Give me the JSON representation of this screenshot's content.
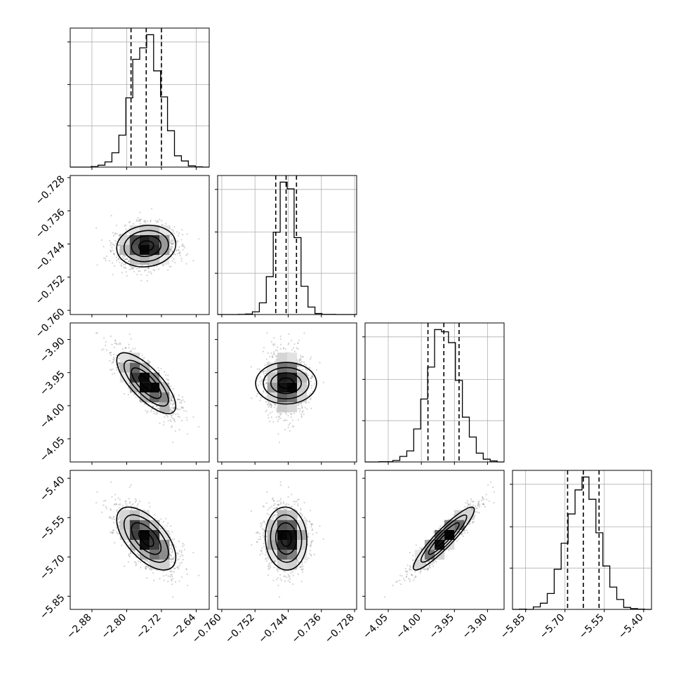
{
  "chart_data": {
    "type": "corner",
    "parameters": [
      {
        "mean": -2.755,
        "std": 0.034,
        "range": [
          -2.93,
          -2.61
        ],
        "ticks": [
          -2.88,
          -2.8,
          -2.72,
          -2.64
        ],
        "tick_labels": [
          "−2.88",
          "−2.80",
          "−2.72",
          "−2.64"
        ],
        "quantiles": [
          -2.79,
          -2.755,
          -2.72
        ]
      },
      {
        "mean": -0.7445,
        "std": 0.0025,
        "range": [
          -0.761,
          -0.7275
        ],
        "ticks": [
          -0.76,
          -0.752,
          -0.744,
          -0.736,
          -0.728
        ],
        "tick_labels": [
          "−0.760",
          "−0.752",
          "−0.744",
          "−0.736",
          "−0.728"
        ],
        "quantiles": [
          -0.747,
          -0.7445,
          -0.742
        ]
      },
      {
        "mean": -3.966,
        "std": 0.023,
        "range": [
          -4.085,
          -3.875
        ],
        "ticks": [
          -4.05,
          -4.0,
          -3.95,
          -3.9
        ],
        "tick_labels": [
          "−4.05",
          "−4.00",
          "−3.95",
          "−3.90"
        ],
        "quantiles": [
          -3.99,
          -3.966,
          -3.943
        ]
      },
      {
        "mean": -5.63,
        "std": 0.06,
        "range": [
          -5.9,
          -5.37
        ],
        "ticks": [
          -5.85,
          -5.7,
          -5.55,
          -5.4
        ],
        "tick_labels": [
          "−5.85",
          "−5.70",
          "−5.55",
          "−5.40"
        ],
        "quantiles": [
          -5.69,
          -5.63,
          -5.57
        ]
      }
    ],
    "correlations": [
      {
        "pair": [
          0,
          1
        ],
        "r": 0.1
      },
      {
        "pair": [
          0,
          2
        ],
        "r": -0.75
      },
      {
        "pair": [
          0,
          3
        ],
        "r": -0.6
      },
      {
        "pair": [
          1,
          2
        ],
        "r": 0.0
      },
      {
        "pair": [
          1,
          3
        ],
        "r": -0.05
      },
      {
        "pair": [
          2,
          3
        ],
        "r": 0.92
      }
    ],
    "histogram_bins": 20,
    "contour_levels_sigma": [
      0.5,
      1.0,
      1.5,
      2.0
    ],
    "grid": true,
    "colors": {
      "axes": "#000000",
      "grid": "#b0b0b0",
      "points": "#808080",
      "hist2d": "#000000"
    }
  }
}
